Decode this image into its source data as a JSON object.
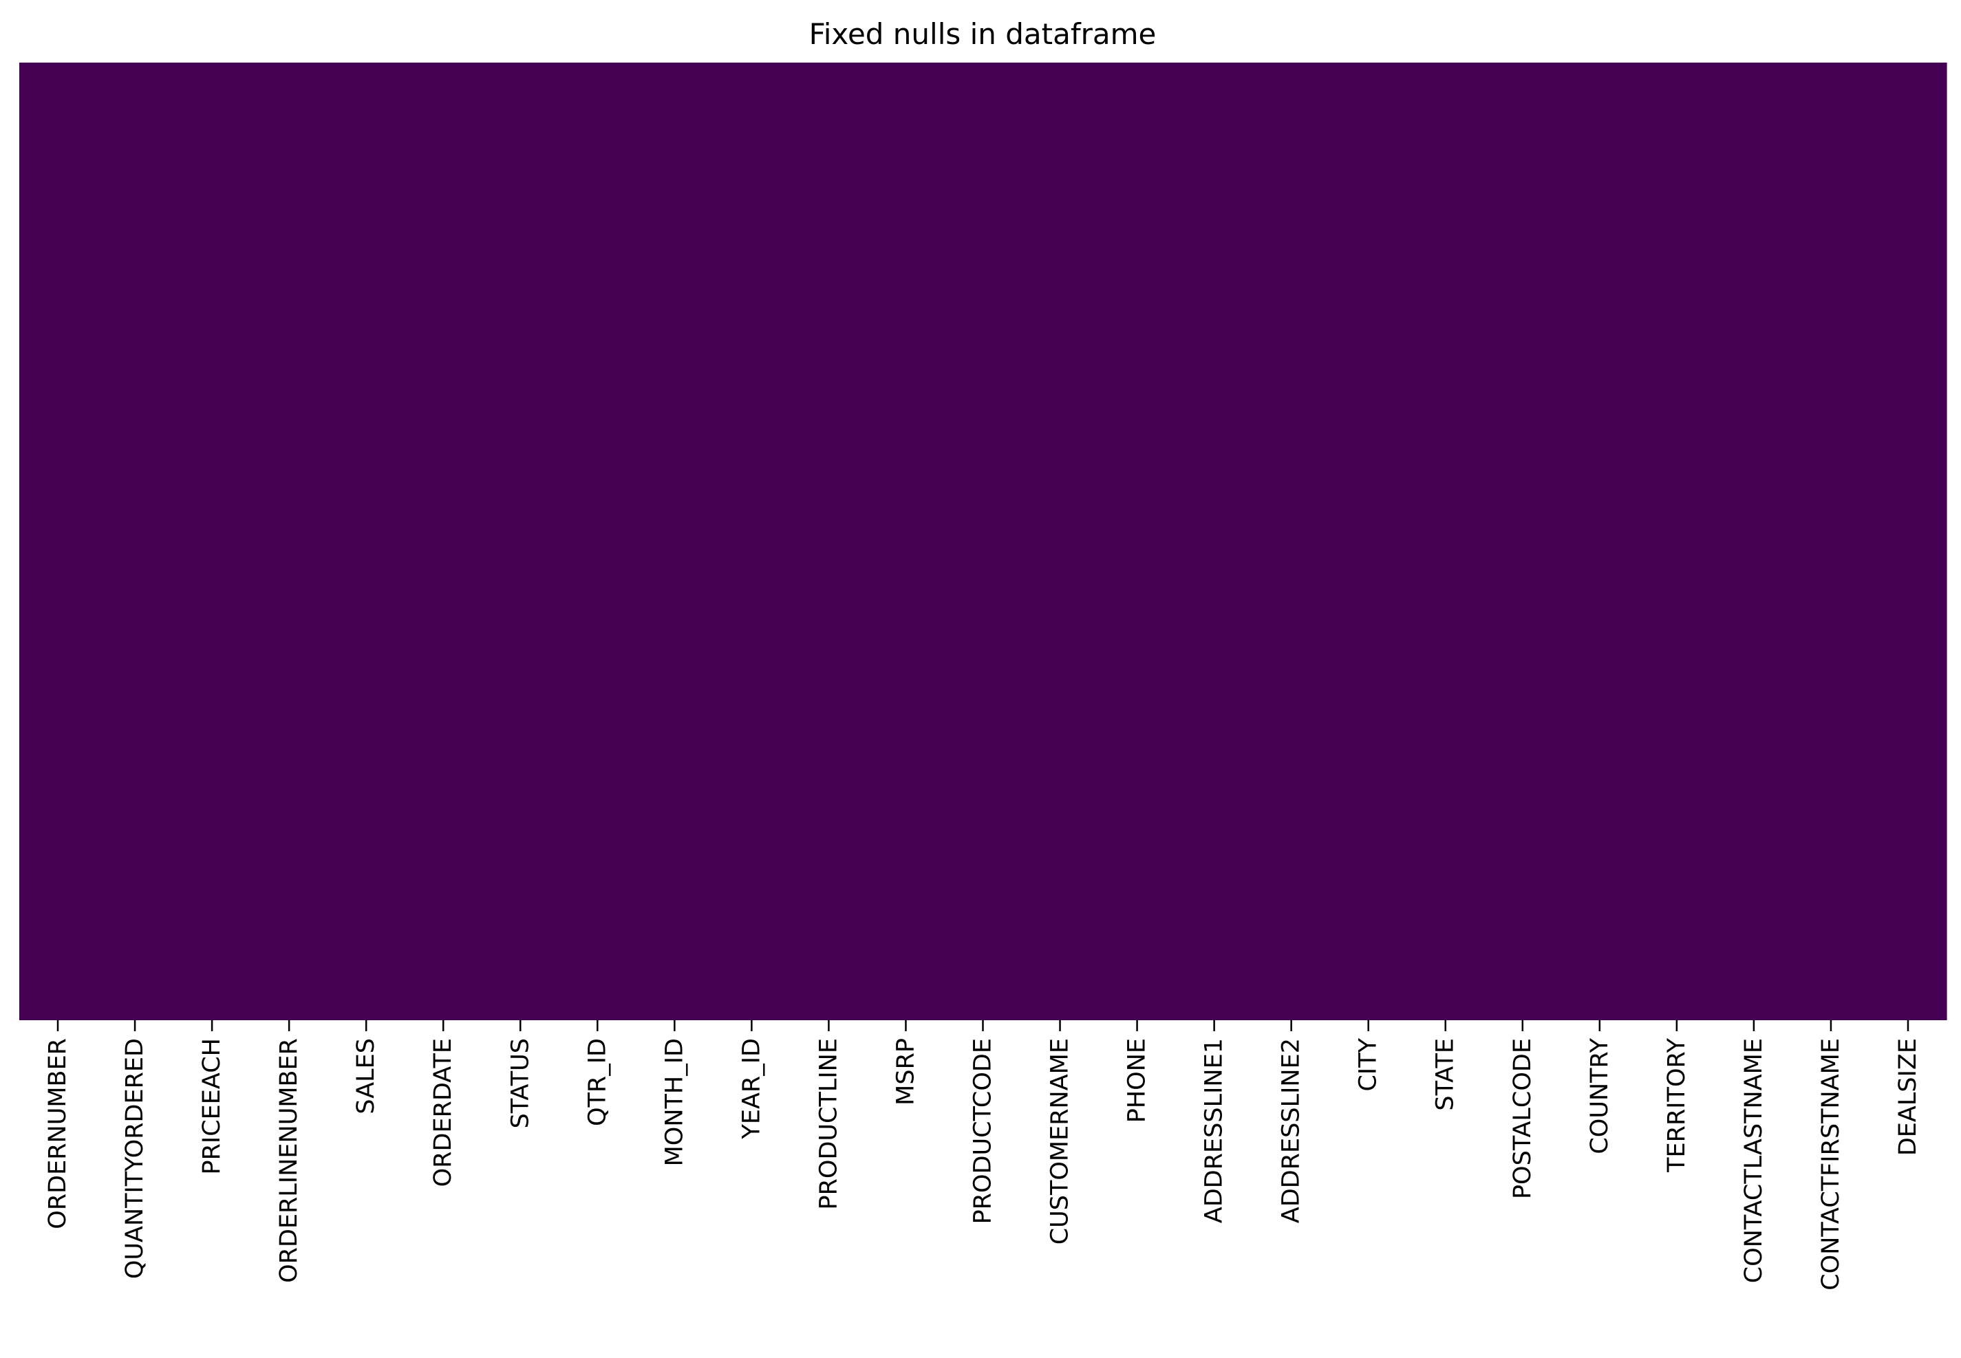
{
  "chart_data": {
    "type": "heatmap",
    "title": "Fixed nulls in dataframe",
    "xlabel": "",
    "ylabel": "",
    "columns": [
      "ORDERNUMBER",
      "QUANTITYORDERED",
      "PRICEEACH",
      "ORDERLINENUMBER",
      "SALES",
      "ORDERDATE",
      "STATUS",
      "QTR_ID",
      "MONTH_ID",
      "YEAR_ID",
      "PRODUCTLINE",
      "MSRP",
      "PRODUCTCODE",
      "CUSTOMERNAME",
      "PHONE",
      "ADDRESSLINE1",
      "ADDRESSLINE2",
      "CITY",
      "STATE",
      "POSTALCODE",
      "COUNTRY",
      "TERRITORY",
      "CONTACTLASTNAME",
      "CONTACTFIRSTNAME",
      "DEALSIZE"
    ],
    "values": [
      0,
      0,
      0,
      0,
      0,
      0,
      0,
      0,
      0,
      0,
      0,
      0,
      0,
      0,
      0,
      0,
      0,
      0,
      0,
      0,
      0,
      0,
      0,
      0,
      0
    ],
    "colormap": "viridis",
    "cell_color": "#440154",
    "colorbar": false,
    "y_ticks": false,
    "grid": false
  }
}
